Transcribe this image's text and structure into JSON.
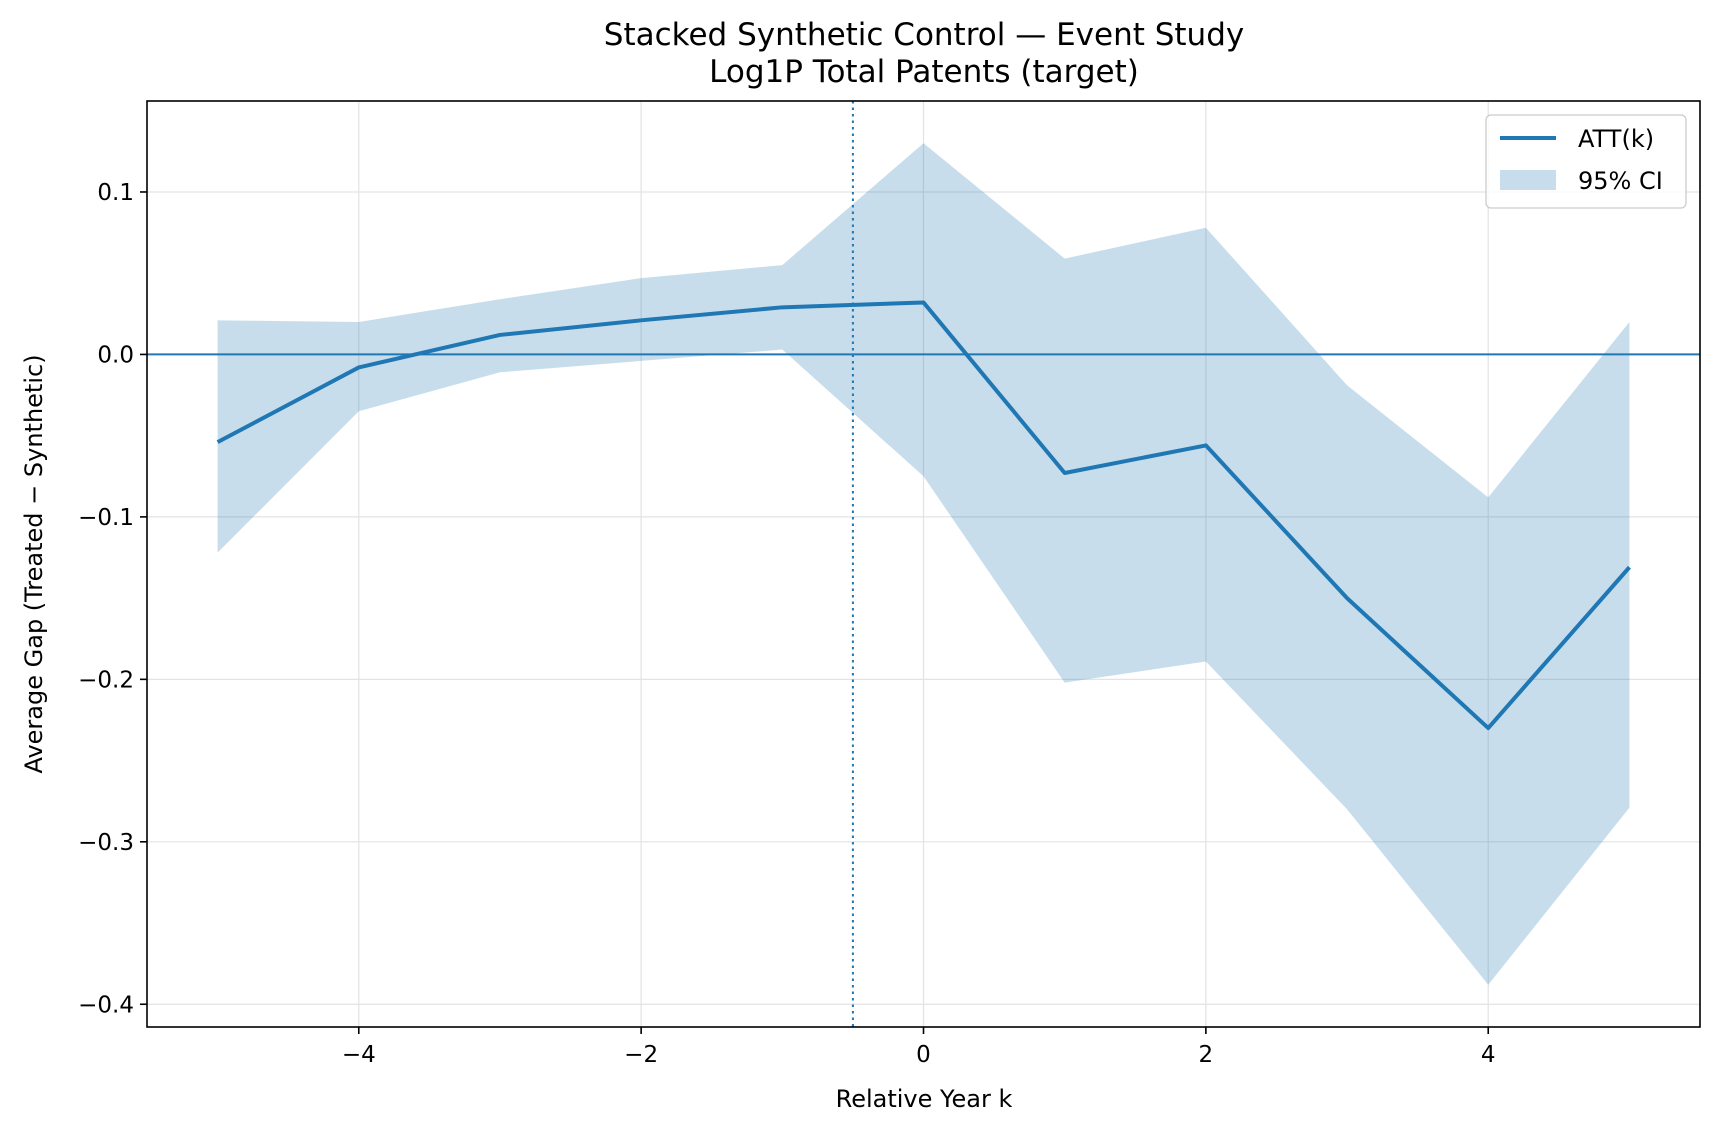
{
  "chart_data": {
    "type": "line",
    "title": "Stacked Synthetic Control — Event Study",
    "subtitle": "Log1P Total Patents (target)",
    "xlabel": "Relative Year k",
    "ylabel": "Average Gap (Treated − Synthetic)",
    "xlim": [
      -5.5,
      5.5
    ],
    "ylim": [
      -0.414,
      0.156
    ],
    "xticks": [
      -4,
      -2,
      0,
      2,
      4
    ],
    "xtick_labels": [
      "−4",
      "−2",
      "0",
      "2",
      "4"
    ],
    "yticks": [
      0.1,
      0.0,
      -0.1,
      -0.2,
      -0.3,
      -0.4
    ],
    "ytick_labels": [
      "0.1",
      "0.0",
      "−0.1",
      "−0.2",
      "−0.3",
      "−0.4"
    ],
    "grid": true,
    "legend_position": "top-right",
    "x": [
      -5,
      -4,
      -3,
      -2,
      -1,
      0,
      1,
      2,
      3,
      4,
      5
    ],
    "series": [
      {
        "name": "ATT(k)",
        "kind": "line",
        "color": "#1f77b4",
        "values": [
          -0.054,
          -0.008,
          0.012,
          0.021,
          0.029,
          0.032,
          -0.073,
          -0.056,
          -0.15,
          -0.23,
          -0.131
        ]
      },
      {
        "name": "95% CI",
        "kind": "band",
        "color": "#1f77b4",
        "lower": [
          -0.122,
          -0.035,
          -0.011,
          -0.004,
          0.003,
          -0.075,
          -0.202,
          -0.189,
          -0.28,
          -0.388,
          -0.279
        ],
        "upper": [
          0.021,
          0.02,
          0.034,
          0.047,
          0.055,
          0.13,
          0.059,
          0.078,
          -0.019,
          -0.088,
          0.02
        ]
      }
    ],
    "reference_lines": [
      {
        "orientation": "horizontal",
        "value": 0.0,
        "style": "solid",
        "color": "#1f77b4"
      },
      {
        "orientation": "vertical",
        "value": -0.5,
        "style": "dotted",
        "color": "#1f77b4"
      }
    ]
  }
}
